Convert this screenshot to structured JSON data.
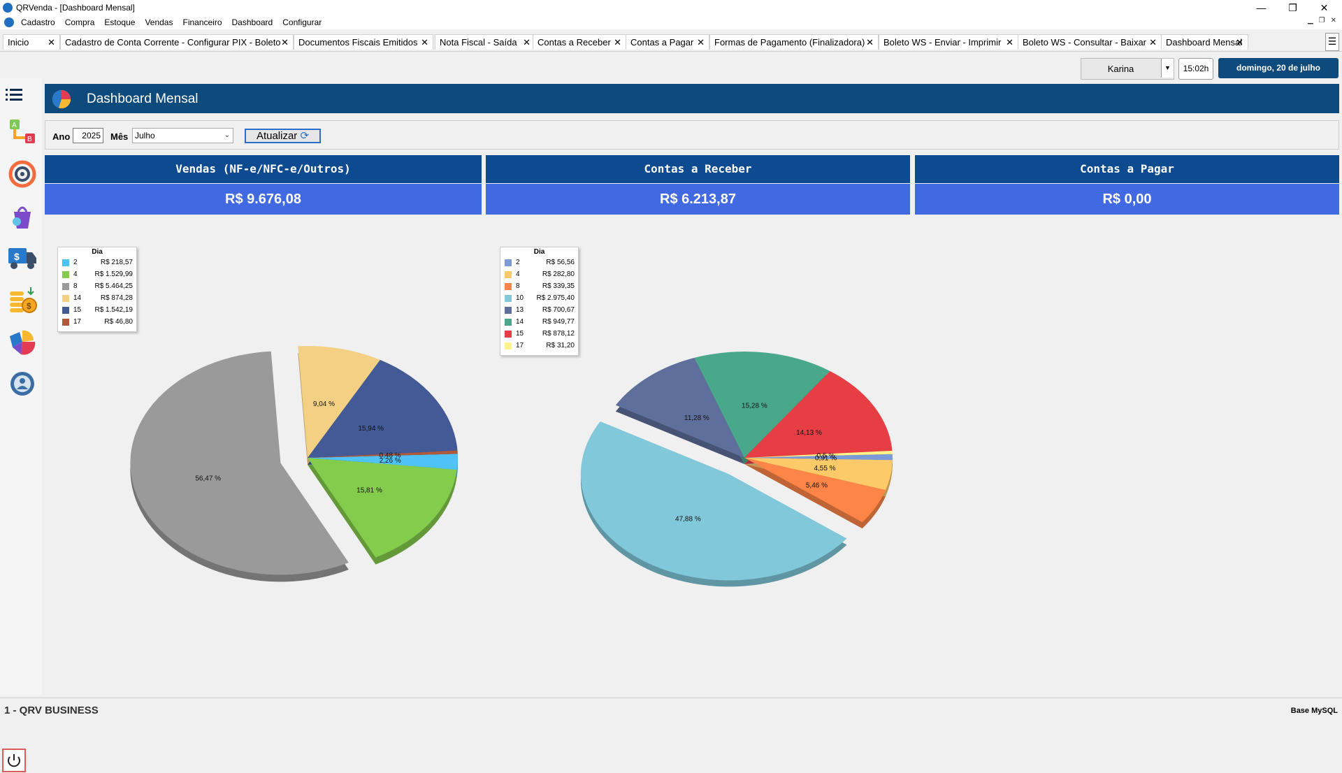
{
  "window": {
    "title": "QRVenda - [Dashboard Mensal]",
    "minimize": "—",
    "maximize": "❐",
    "close": "✕"
  },
  "menu": [
    "Cadastro",
    "Compra",
    "Estoque",
    "Vendas",
    "Financeiro",
    "Dashboard",
    "Configurar"
  ],
  "tabs": [
    {
      "label": "Inicio"
    },
    {
      "label": "Cadastro  de Conta Corrente - Configurar PIX - Boleto"
    },
    {
      "label": "Documentos Fiscais Emitidos"
    },
    {
      "label": "Nota Fiscal - Saída"
    },
    {
      "label": "Contas a Receber"
    },
    {
      "label": "Contas a Pagar"
    },
    {
      "label": "Formas de Pagamento (Finalizadora)"
    },
    {
      "label": "Boleto WS - Enviar - Imprimir"
    },
    {
      "label": "Boleto WS - Consultar - Baixar"
    },
    {
      "label": "Dashboard Mensal"
    }
  ],
  "user": {
    "name": "Karina",
    "time": "15:02h",
    "date": "domingo, 20 de julho"
  },
  "page": {
    "title": "Dashboard Mensal"
  },
  "filter": {
    "ano_label": "Ano",
    "ano_value": "2025",
    "mes_label": "Mês",
    "mes_value": "Julho",
    "button": "Atualizar"
  },
  "cards": [
    {
      "title": "Vendas (NF-e/NFC-e/Outros)",
      "value": "R$ 9.676,08"
    },
    {
      "title": "Contas a Receber",
      "value": "R$ 6.213,87"
    },
    {
      "title": "Contas a Pagar",
      "value": "R$ 0,00"
    }
  ],
  "colors": {
    "header": "#0e4a7c",
    "card_title": "#0e4a8f",
    "card_value": "#4169e1"
  },
  "chart_data": [
    {
      "type": "pie",
      "legend_title": "Dia",
      "categories": [
        "2",
        "4",
        "8",
        "14",
        "15",
        "17"
      ],
      "values": [
        218.57,
        1529.99,
        5464.25,
        874.28,
        1542.19,
        46.8
      ],
      "value_labels": [
        "R$ 218,57",
        "R$ 1.529,99",
        "R$ 5.464,25",
        "R$ 874,28",
        "R$ 1.542,19",
        "R$ 46,80"
      ],
      "percent_labels": [
        "2,26 %",
        "15,81 %",
        "56,47 %",
        "9,04 %",
        "15,94 %",
        "0,48 %"
      ],
      "colors": [
        "#4fc3f7",
        "#84cc4c",
        "#9a9a9a",
        "#f4d084",
        "#435a96",
        "#b05a3c"
      ],
      "exploded": "8",
      "legend_position": "top-left"
    },
    {
      "type": "pie",
      "legend_title": "Dia",
      "categories": [
        "2",
        "4",
        "8",
        "10",
        "13",
        "14",
        "15",
        "17"
      ],
      "values": [
        56.56,
        282.8,
        339.35,
        2975.4,
        700.67,
        949.77,
        878.12,
        31.2
      ],
      "value_labels": [
        "R$ 56,56",
        "R$ 282,80",
        "R$ 339,35",
        "R$ 2.975,40",
        "R$ 700,67",
        "R$ 949,77",
        "R$ 878,12",
        "R$ 31,20"
      ],
      "percent_labels": [
        "0,91 %",
        "4,55 %",
        "5,46 %",
        "47,88 %",
        "11,28 %",
        "15,28 %",
        "14,13 %",
        "0,5 %"
      ],
      "colors": [
        "#7b9bd8",
        "#fdca6a",
        "#fd8547",
        "#80c8da",
        "#5e6f9c",
        "#4aa88a",
        "#e63e44",
        "#fff38a"
      ],
      "exploded": "10",
      "legend_position": "top-left"
    }
  ],
  "status": {
    "left": "1 - QRV BUSINESS",
    "right": "Base MySQL"
  }
}
